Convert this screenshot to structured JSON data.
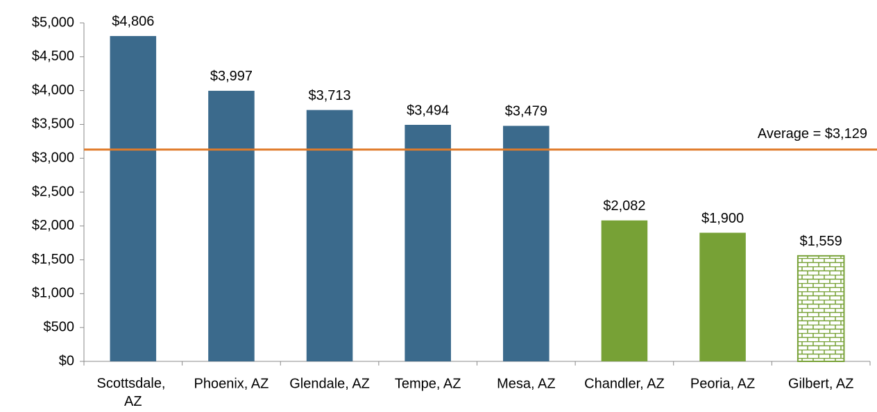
{
  "chart_data": {
    "type": "bar",
    "categories": [
      "Scottsdale, AZ",
      "Phoenix, AZ",
      "Glendale, AZ",
      "Tempe, AZ",
      "Mesa, AZ",
      "Chandler, AZ",
      "Peoria, AZ",
      "Gilbert, AZ"
    ],
    "values": [
      4806,
      3997,
      3713,
      3494,
      3479,
      2082,
      1900,
      1559
    ],
    "value_labels": [
      "$4,806",
      "$3,997",
      "$3,713",
      "$3,494",
      "$3,479",
      "$2,082",
      "$1,900",
      "$1,559"
    ],
    "colors": [
      "#3b6a8c",
      "#3b6a8c",
      "#3b6a8c",
      "#3b6a8c",
      "#3b6a8c",
      "#77a136",
      "#77a136",
      "#77a136"
    ],
    "patterns": [
      null,
      null,
      null,
      null,
      null,
      null,
      null,
      "brick"
    ],
    "ylim": [
      0,
      5000
    ],
    "yticks": [
      {
        "value": 0,
        "label": "$0"
      },
      {
        "value": 500,
        "label": "$500"
      },
      {
        "value": 1000,
        "label": "$1,000"
      },
      {
        "value": 1500,
        "label": "$1,500"
      },
      {
        "value": 2000,
        "label": "$2,000"
      },
      {
        "value": 2500,
        "label": "$2,500"
      },
      {
        "value": 3000,
        "label": "$3,000"
      },
      {
        "value": 3500,
        "label": "$3,500"
      },
      {
        "value": 4000,
        "label": "$4,000"
      },
      {
        "value": 4500,
        "label": "$4,500"
      },
      {
        "value": 5000,
        "label": "$5,000"
      }
    ],
    "grid": false,
    "average_line": {
      "value": 3129,
      "label": "Average = $3,129",
      "color": "#e07b2a"
    }
  }
}
